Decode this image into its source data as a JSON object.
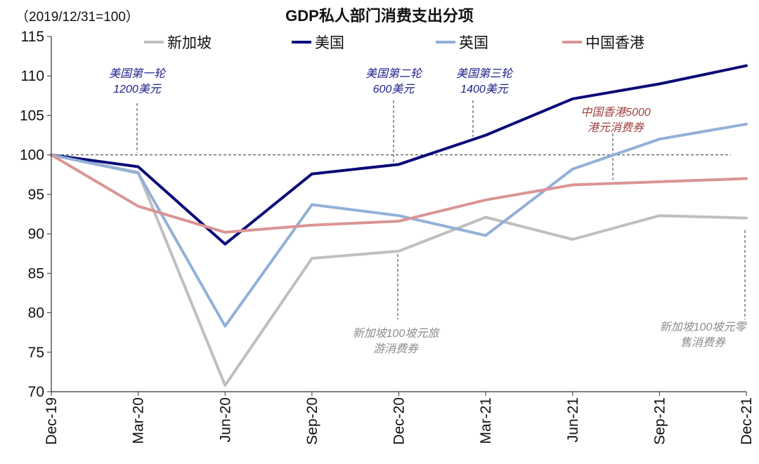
{
  "chart_data": {
    "type": "line",
    "title": "GDP私人部门消费支出分项",
    "unit_label": "（2019/12/31=100）",
    "categories": [
      "Dec-19",
      "Mar-20",
      "Jun-20",
      "Sep-20",
      "Dec-20",
      "Mar-21",
      "Jun-21",
      "Sep-21",
      "Dec-21"
    ],
    "ylim": [
      70,
      115
    ],
    "yticks": [
      "115",
      "110",
      "105",
      "100",
      "95",
      "90",
      "85",
      "80",
      "75",
      "70"
    ],
    "baseline": 100,
    "legend_position": "top",
    "series": [
      {
        "name": "新加坡",
        "color": "#bfbfbf",
        "values": [
          100,
          97.8,
          70.8,
          86.9,
          87.8,
          92.1,
          89.3,
          92.3,
          92.0
        ]
      },
      {
        "name": "美国",
        "color": "#0a0a78",
        "values": [
          100,
          98.5,
          88.7,
          97.6,
          98.8,
          102.5,
          107.1,
          109.0,
          111.3
        ]
      },
      {
        "name": "英国",
        "color": "#92b0d8",
        "values": [
          100,
          97.7,
          78.3,
          93.7,
          92.3,
          89.8,
          98.2,
          102.0,
          103.9
        ]
      },
      {
        "name": "中国香港",
        "color": "#d99594",
        "values": [
          100,
          93.5,
          90.2,
          91.1,
          91.6,
          94.3,
          96.2,
          96.6,
          97.0
        ]
      }
    ],
    "annotations": [
      {
        "lines": [
          "美国第一轮",
          "1200美元"
        ],
        "color": "#1f1f8c"
      },
      {
        "lines": [
          "美国第二轮",
          "600美元"
        ],
        "color": "#1f1f8c"
      },
      {
        "lines": [
          "美国第三轮",
          "1400美元"
        ],
        "color": "#1f1f8c"
      },
      {
        "lines": [
          "中国香港5000",
          "港元消费券"
        ],
        "color": "#a0413f"
      },
      {
        "lines": [
          "新加坡100坡元旅",
          "游消费券"
        ],
        "color": "#8c8c8c"
      },
      {
        "lines": [
          "新加坡100坡元零",
          "售消费券"
        ],
        "color": "#8c8c8c"
      }
    ]
  }
}
